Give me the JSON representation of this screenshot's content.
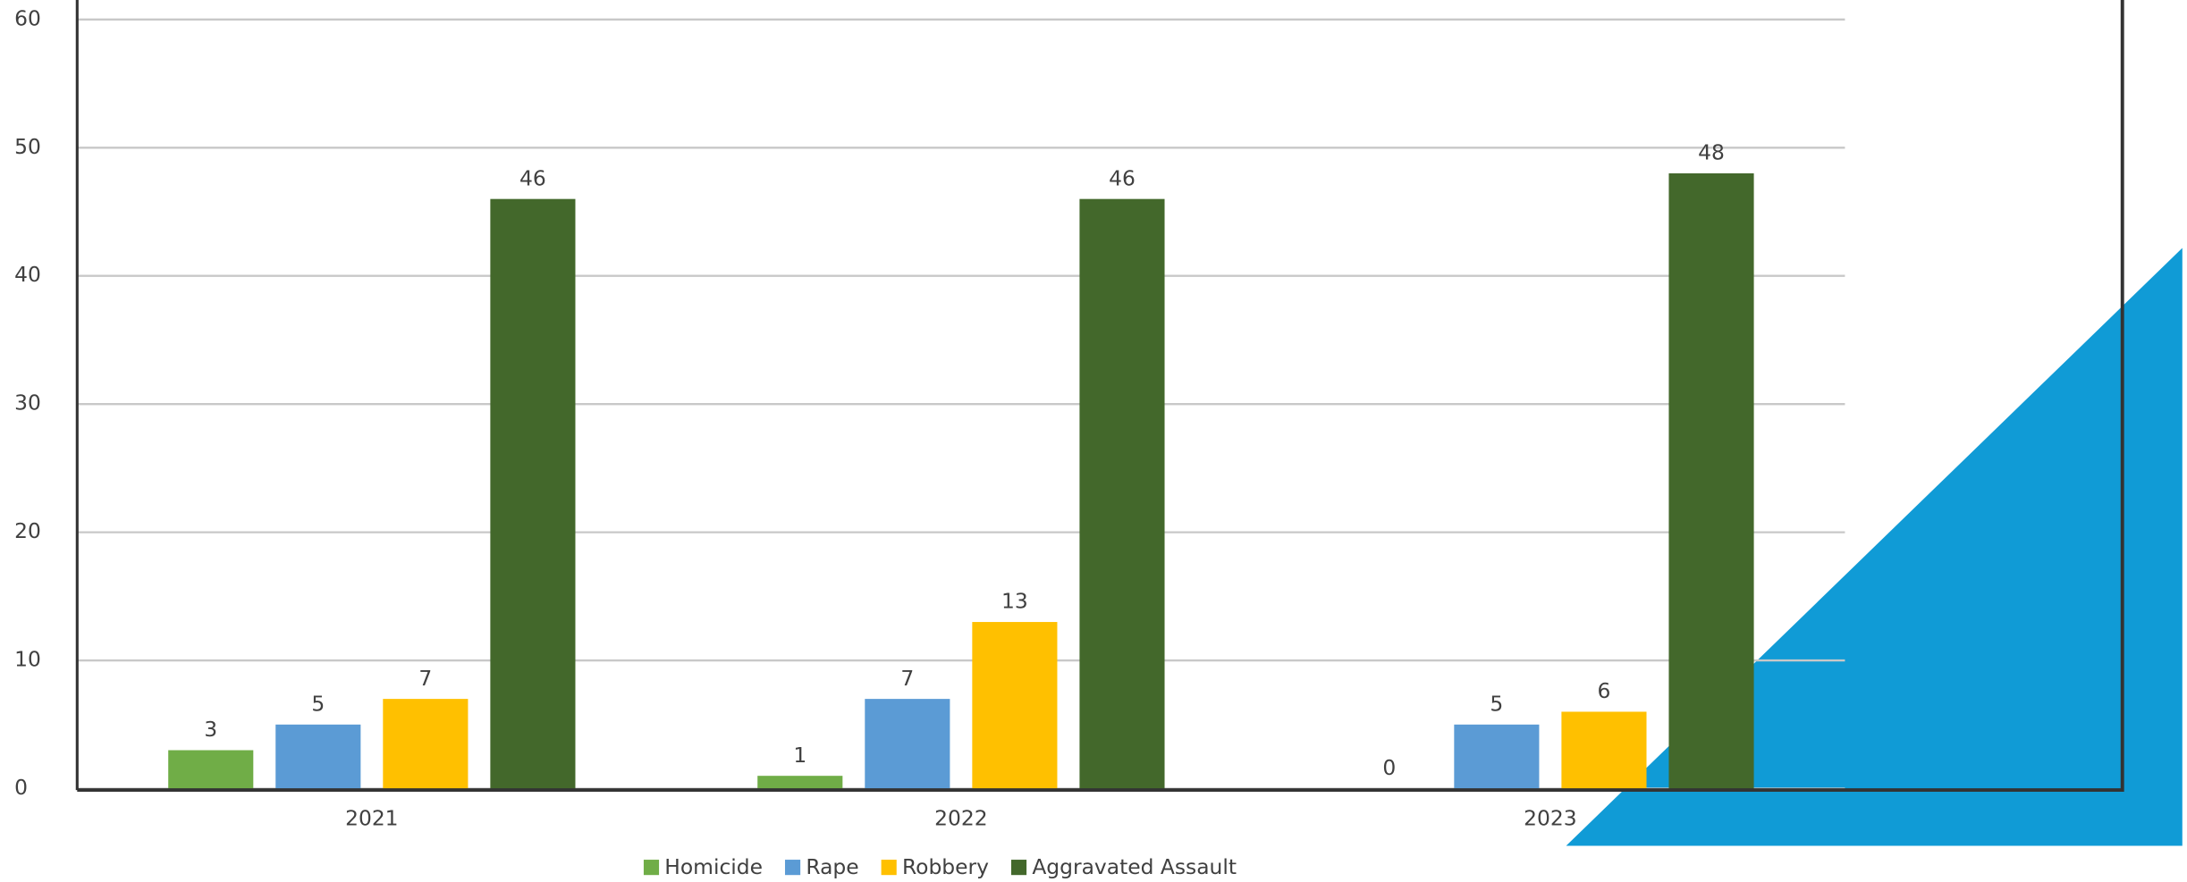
{
  "chart_data": {
    "type": "bar",
    "categories": [
      "2021",
      "2022",
      "2023"
    ],
    "series": [
      {
        "name": "Homicide",
        "color": "#70ad47",
        "values": [
          3,
          1,
          0
        ]
      },
      {
        "name": "Rape",
        "color": "#5b9bd5",
        "values": [
          5,
          7,
          5
        ]
      },
      {
        "name": "Robbery",
        "color": "#ffc000",
        "values": [
          7,
          13,
          6
        ]
      },
      {
        "name": "Aggravated Assault",
        "color": "#43682b",
        "values": [
          46,
          46,
          48
        ]
      }
    ],
    "ylim": [
      0,
      60
    ],
    "yticks": [
      0,
      10,
      20,
      30,
      40,
      50,
      60
    ],
    "grid": true,
    "legend": "bottom"
  }
}
